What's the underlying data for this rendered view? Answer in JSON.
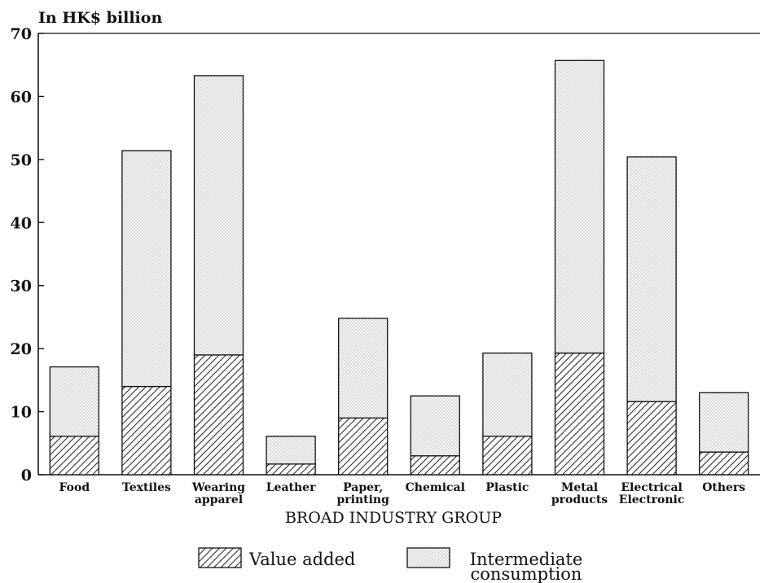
{
  "chart_data": {
    "type": "bar",
    "stacked": true,
    "unit_label": "In HK$ billion",
    "xlabel": "BROAD INDUSTRY GROUP",
    "ylim": [
      0,
      70
    ],
    "yticks": [
      0,
      10,
      20,
      30,
      40,
      50,
      60,
      70
    ],
    "categories": [
      [
        "Food"
      ],
      [
        "Textiles"
      ],
      [
        "Wearing",
        "apparel"
      ],
      [
        "Leather"
      ],
      [
        "Paper,",
        "printing"
      ],
      [
        "Chemical"
      ],
      [
        "Plastic"
      ],
      [
        "Metal",
        "products"
      ],
      [
        "Electrical",
        "Electronic"
      ],
      [
        "Others"
      ]
    ],
    "series": [
      {
        "name": "Value added",
        "pattern": "diagonal-hatch",
        "values": [
          6.1,
          14.0,
          19.0,
          1.7,
          9.0,
          3.0,
          6.1,
          19.3,
          11.6,
          3.6
        ]
      },
      {
        "name": [
          "Intermediate",
          "consumption"
        ],
        "pattern": "stipple",
        "values": [
          11.0,
          37.4,
          44.3,
          4.4,
          15.8,
          9.5,
          13.2,
          46.4,
          38.8,
          9.4
        ]
      }
    ],
    "grid": false,
    "legend_position": "bottom"
  }
}
